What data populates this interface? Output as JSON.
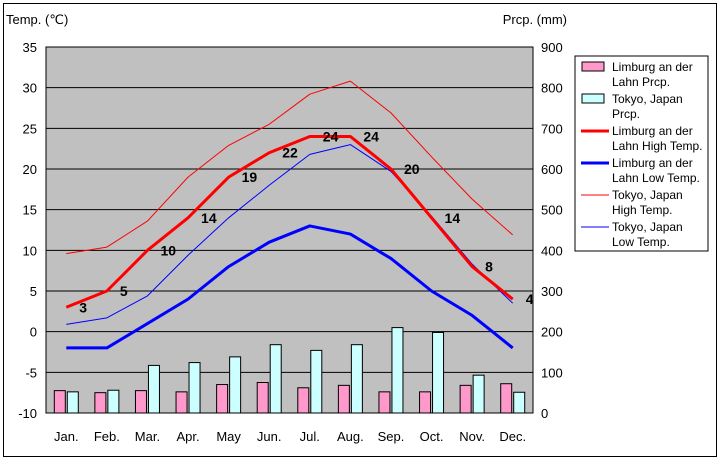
{
  "chart_data": {
    "type": "bar",
    "y_left_label": "Temp. (℃)",
    "y_right_label": "Prcp. (mm)",
    "ylim_left": [
      -10,
      35
    ],
    "ylim_right": [
      0,
      900
    ],
    "yticks_left": [
      "35",
      "30",
      "25",
      "20",
      "15",
      "10",
      "5",
      "0",
      "-5",
      "-10"
    ],
    "yticks_right": [
      "900",
      "800",
      "700",
      "600",
      "500",
      "400",
      "300",
      "200",
      "100",
      "0"
    ],
    "categories": [
      "Jan.",
      "Feb.",
      "Mar.",
      "Apr.",
      "May",
      "Jun.",
      "Jul.",
      "Aug.",
      "Sep.",
      "Oct.",
      "Nov.",
      "Dec."
    ],
    "grid": true,
    "legend_position": "right",
    "series": [
      {
        "name": "Limburg an der Lahn Prcp.",
        "kind": "bar",
        "axis": "right",
        "color": "#ff99cc",
        "values": [
          55,
          50,
          55,
          52,
          70,
          75,
          62,
          68,
          52,
          52,
          68,
          72
        ]
      },
      {
        "name": "Tokyo, Japan Prcp.",
        "kind": "bar",
        "axis": "right",
        "color": "#ccffff",
        "values": [
          52,
          56,
          117,
          124,
          138,
          168,
          154,
          168,
          210,
          198,
          93,
          51
        ]
      },
      {
        "name": "Limburg an der Lahn High Temp.",
        "kind": "line",
        "axis": "left",
        "color": "#ff0000",
        "width": 3,
        "values": [
          3,
          5,
          10,
          14,
          19,
          22,
          24,
          24,
          20,
          14,
          8,
          4
        ],
        "labels": [
          "3",
          "5",
          "10",
          "14",
          "19",
          "22",
          "24",
          "24",
          "20",
          "14",
          "8",
          "4"
        ]
      },
      {
        "name": "Limburg an der Lahn Low Temp.",
        "kind": "line",
        "axis": "left",
        "color": "#0000ff",
        "width": 3,
        "values": [
          -2,
          -2,
          1,
          4,
          8,
          11,
          13,
          12,
          9,
          5,
          2,
          -2
        ]
      },
      {
        "name": "Tokyo, Japan High Temp.",
        "kind": "line",
        "axis": "left",
        "color": "#ff0000",
        "width": 1,
        "values": [
          9.6,
          10.4,
          13.6,
          19.0,
          22.9,
          25.5,
          29.2,
          30.8,
          26.9,
          21.5,
          16.3,
          11.9
        ]
      },
      {
        "name": "Tokyo, Japan Low Temp.",
        "kind": "line",
        "axis": "left",
        "color": "#0000ff",
        "width": 1,
        "values": [
          0.9,
          1.7,
          4.4,
          9.4,
          14.0,
          18.0,
          21.8,
          23.0,
          19.7,
          14.2,
          8.3,
          3.5
        ]
      }
    ],
    "legend": [
      {
        "lines": [
          "Limburg an der",
          "Lahn Prcp."
        ],
        "swatch": "bar",
        "color": "#ff99cc"
      },
      {
        "lines": [
          "Tokyo, Japan",
          "Prcp."
        ],
        "swatch": "bar",
        "color": "#ccffff"
      },
      {
        "lines": [
          "Limburg an der",
          "Lahn High Temp."
        ],
        "swatch": "line",
        "color": "#ff0000",
        "width": 3
      },
      {
        "lines": [
          "Limburg an der",
          "Lahn Low Temp."
        ],
        "swatch": "line",
        "color": "#0000ff",
        "width": 3
      },
      {
        "lines": [
          "Tokyo, Japan",
          "High Temp."
        ],
        "swatch": "line",
        "color": "#ff0000",
        "width": 1
      },
      {
        "lines": [
          "Tokyo, Japan",
          "Low Temp."
        ],
        "swatch": "line",
        "color": "#0000ff",
        "width": 1
      }
    ]
  }
}
